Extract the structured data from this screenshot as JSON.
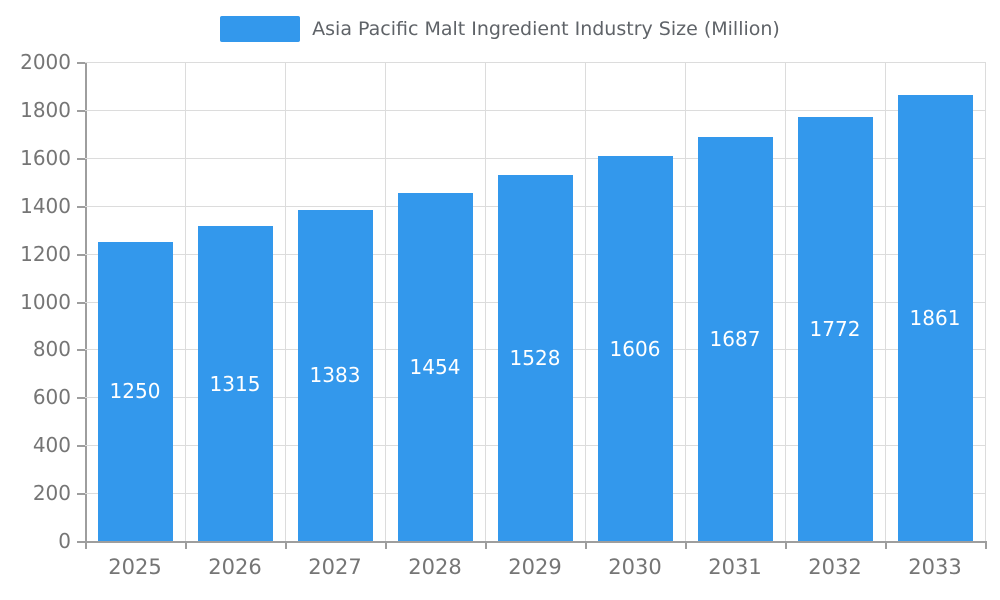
{
  "chart_data": {
    "type": "bar",
    "title": "Asia Pacific Malt Ingredient Industry Size (Million)",
    "categories": [
      "2025",
      "2026",
      "2027",
      "2028",
      "2029",
      "2030",
      "2031",
      "2032",
      "2033"
    ],
    "values": [
      1250,
      1315,
      1383,
      1454,
      1528,
      1606,
      1687,
      1772,
      1861
    ],
    "xlabel": "",
    "ylabel": "",
    "ylim": [
      0,
      2000
    ],
    "ytick_step": 200,
    "grid": "on",
    "legend_position": "top-center",
    "bar_color": "#3398EC",
    "value_label_color": "#ffffff"
  }
}
